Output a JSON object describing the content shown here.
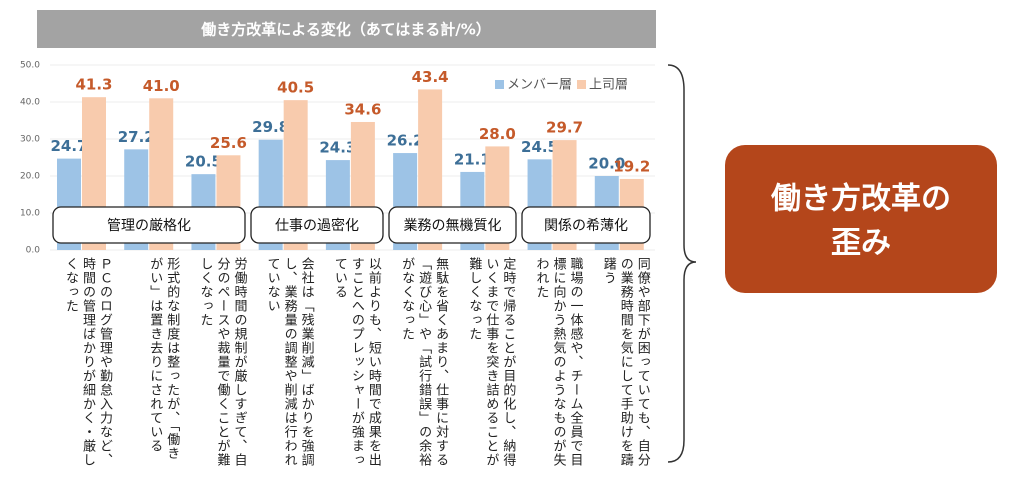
{
  "chart_data": {
    "type": "bar",
    "title": "働き方改革による変化（あてはまる計/%）",
    "categories": [
      "ＰＣのログ管理や勤怠入力など、時間の管理ばかりが細かく・厳しくなった",
      "形式的な制度は整ったが、「働きがい」は置き去りにされている",
      "労働時間の規制が厳しすぎて、自分のペースや裁量で働くことが難しくなった",
      "会社は「残業削減」ばかりを強調し、業務量の調整や削減は行われていない",
      "以前よりも、短い時間で成果を出すことへのプレッシャーが強まっている",
      "無駄を省くあまり、仕事に対する「遊び心」や「試行錯誤」の余裕がなくなった",
      "定時で帰ることが目的化し、納得いくまで仕事を突き詰めることが難しくなった",
      "職場の一体感や、チーム全員で目標に向かう熱気のようなものが失われた",
      "同僚や部下が困っていても、自分の業務時間を気にして手助けを躊躇う"
    ],
    "series": [
      {
        "name": "メンバー層",
        "color": "#9dc3e6",
        "label_color": "#3d6f97",
        "values": [
          24.7,
          27.2,
          20.5,
          29.8,
          24.3,
          26.2,
          21.1,
          24.5,
          20.0
        ],
        "value_labels": [
          "24.7",
          "27.2",
          "20.5",
          "29.8",
          "24.3",
          "26.2",
          "21.1",
          "24.5",
          "20.0"
        ]
      },
      {
        "name": "上司層",
        "color": "#f8cbad",
        "label_color": "#c55a2a",
        "values": [
          41.3,
          41.0,
          25.6,
          40.5,
          34.6,
          43.4,
          28.0,
          29.7,
          19.2
        ],
        "value_labels": [
          "41.3",
          "41.0",
          "25.6",
          "40.5",
          "34.6",
          "43.4",
          "28.0",
          "29.7",
          "19.2"
        ]
      }
    ],
    "ylim": [
      0,
      50
    ],
    "yticks": [
      {
        "value": 0,
        "label": "0.0"
      },
      {
        "value": 10,
        "label": "10.0"
      },
      {
        "value": 20,
        "label": "20.0"
      },
      {
        "value": 30,
        "label": "30.0"
      },
      {
        "value": 40,
        "label": "40.0"
      },
      {
        "value": 50,
        "label": "50.0"
      }
    ],
    "grid": true,
    "annotations": [
      "管理の厳格化",
      "仕事の過密化",
      "業務の無機質化",
      "関係の希薄化"
    ],
    "conclusion": [
      "働き方改革の",
      "歪み"
    ]
  }
}
